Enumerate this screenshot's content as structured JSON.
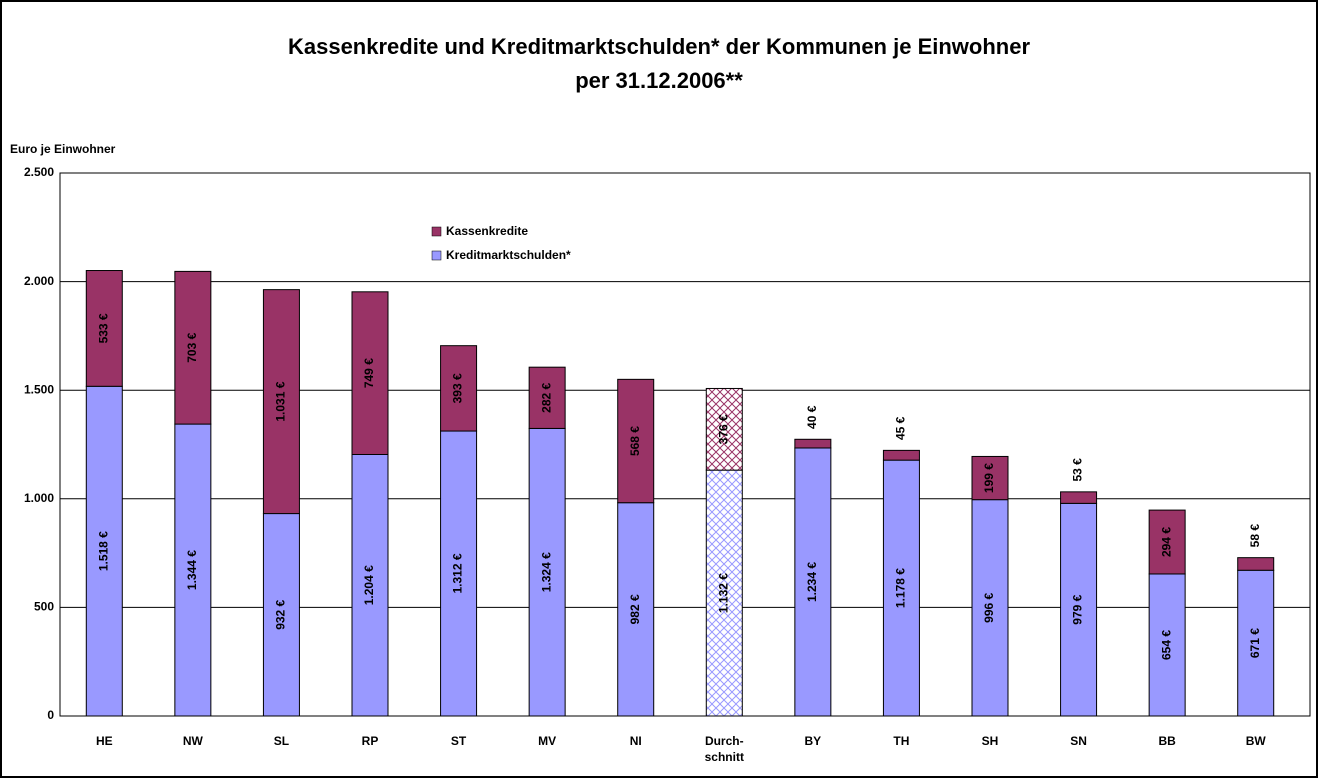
{
  "chart_data": {
    "type": "stacked_bar",
    "title": "Kassenkredite und Kreditmarktschulden* der Kommunen je Einwohner",
    "subtitle": "per 31.12.2006**",
    "y_label": "Euro je Einwohner",
    "categories": [
      "HE",
      "NW",
      "SL",
      "RP",
      "ST",
      "MV",
      "NI",
      "Durch-\nschnitt",
      "BY",
      "TH",
      "SH",
      "SN",
      "BB",
      "BW"
    ],
    "series": [
      {
        "name": "Kreditmarktschulden*",
        "color": "#9999ff",
        "values": [
          1518,
          1344,
          932,
          1204,
          1312,
          1324,
          982,
          1132,
          1234,
          1178,
          996,
          979,
          654,
          671
        ],
        "value_labels": [
          "1.518 €",
          "1.344 €",
          "932 €",
          "1.204 €",
          "1.312 €",
          "1.324 €",
          "982 €",
          "1.132 €",
          "1.234 €",
          "1.178 €",
          "996 €",
          "979 €",
          "654 €",
          "671 €"
        ]
      },
      {
        "name": "Kassenkredite",
        "color": "#993366",
        "values": [
          533,
          703,
          1031,
          749,
          393,
          282,
          568,
          376,
          40,
          45,
          199,
          53,
          294,
          58
        ],
        "value_labels": [
          "533 €",
          "703 €",
          "1.031 €",
          "749 €",
          "393 €",
          "282 €",
          "568 €",
          "376 €",
          "40 €",
          "45 €",
          "199 €",
          "53 €",
          "294 €",
          "58 €"
        ]
      }
    ],
    "ylim": [
      0,
      2500
    ],
    "yticks": [
      0,
      500,
      {
        "value": 1000,
        "label": "1.000"
      },
      {
        "value": 1500,
        "label": "1.500"
      },
      {
        "value": 2000,
        "label": "2.000"
      },
      {
        "value": 2500,
        "label": "2.500"
      }
    ],
    "grid": true
  }
}
